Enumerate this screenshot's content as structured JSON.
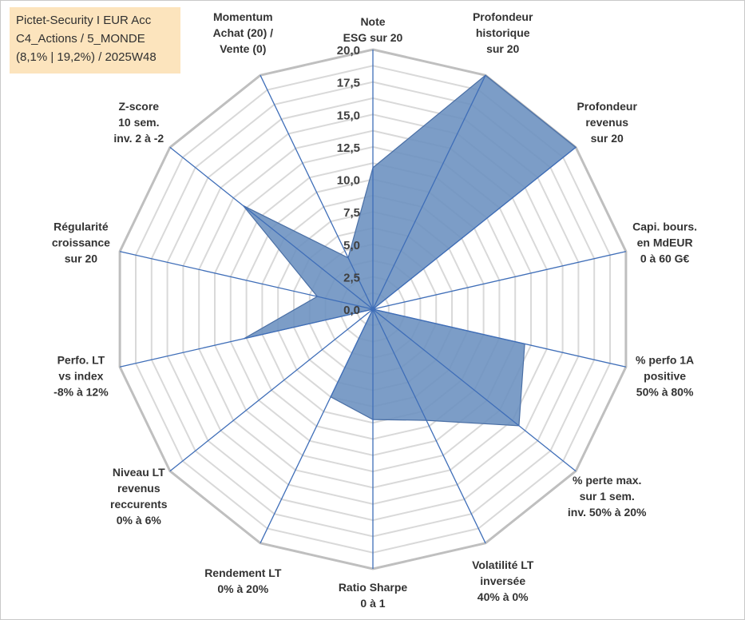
{
  "title_box": {
    "line1": "Pictet-Security I EUR Acc",
    "line2": "C4_Actions / 5_MONDE",
    "line3": "(8,1% | 19,2%) / 2025W48"
  },
  "chart_data": {
    "type": "radar",
    "rmax": 20,
    "grid_step": 1.25,
    "tick_labels": [
      "0,0",
      "2,5",
      "5,0",
      "7,5",
      "10,0",
      "12,5",
      "15,0",
      "17,5",
      "20,0"
    ],
    "tick_values": [
      0,
      2.5,
      5,
      7.5,
      10,
      12.5,
      15,
      17.5,
      20
    ],
    "axes": [
      {
        "label": [
          "Note",
          "ESG sur 20"
        ]
      },
      {
        "label": [
          "Profondeur",
          "historique",
          "sur 20"
        ]
      },
      {
        "label": [
          "Profondeur",
          "revenus",
          "sur 20"
        ]
      },
      {
        "label": [
          "Capi. bours.",
          "en MdEUR",
          "0 à 60 G€"
        ]
      },
      {
        "label": [
          "% perfo 1A",
          "positive",
          "50% à 80%"
        ]
      },
      {
        "label": [
          "% perte max.",
          "sur 1 sem.",
          "inv. 50% à 20%"
        ]
      },
      {
        "label": [
          "Volatilité LT",
          "inversée",
          "40% à 0%"
        ]
      },
      {
        "label": [
          "Ratio Sharpe",
          "0 à 1"
        ]
      },
      {
        "label": [
          "Rendement LT",
          "0% à 20%"
        ]
      },
      {
        "label": [
          "Niveau LT",
          "revenus",
          "reccurents",
          "0% à 6%"
        ]
      },
      {
        "label": [
          "Perfo. LT",
          "vs index",
          "-8% à 12%"
        ]
      },
      {
        "label": [
          "Régularité",
          "croissance",
          "sur 20"
        ]
      },
      {
        "label": [
          "Z-score",
          "10 sem.",
          "inv. 2 à -2"
        ]
      },
      {
        "label": [
          "Momentum",
          "Achat (20) /",
          "Vente (0)"
        ]
      }
    ],
    "series": [
      {
        "values": [
          10.9,
          20,
          20,
          0,
          12,
          14.4,
          9.5,
          8.5,
          7.5,
          0,
          10.2,
          4.4,
          12.8,
          4.4
        ]
      }
    ],
    "fill_color": "#6a8fbf",
    "stroke_color": "#4a6fa5",
    "axis_color": "#3f6eb8",
    "grid_color": "#d9d9d9",
    "outer_grid_color": "#bfbfbf",
    "grid": true
  }
}
